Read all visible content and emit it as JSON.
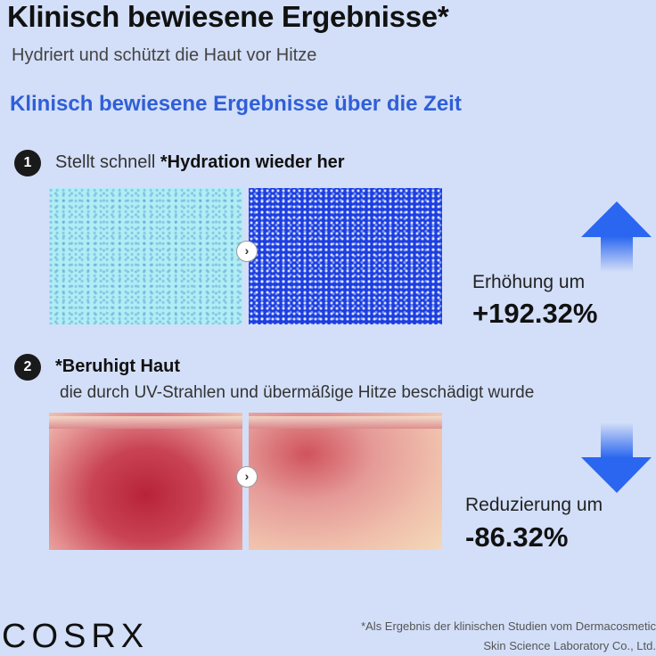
{
  "title": "Klinisch bewiesene Ergebnisse*",
  "subtitle": "Hydriert und schützt die Haut vor Hitze",
  "heading": "Klinisch bewiesene Ergebnisse über die Zeit",
  "steps": [
    {
      "number": "1",
      "text_regular": "Stellt schnell ",
      "text_bold": "*Hydration wieder her",
      "result_label": "Erhöhung um",
      "result_value": "+192.32%",
      "arrow_icon": "arrow-up-icon"
    },
    {
      "number": "2",
      "text_bold": "*Beruhigt Haut",
      "subtext": "die durch UV-Strahlen und übermäßige Hitze beschädigt wurde",
      "result_label": "Reduzierung um",
      "result_value": "-86.32%",
      "arrow_icon": "arrow-down-icon"
    }
  ],
  "chevron": "›",
  "brand": "COSRX",
  "footnote": {
    "line1": "*Als Ergebnis der klinischen Studien vom Dermacosmetic",
    "line2": "Skin Science Laboratory Co., Ltd."
  },
  "colors": {
    "background": "#d3dff8",
    "accent": "#2f5fd8",
    "arrow": "#2a66f0"
  }
}
